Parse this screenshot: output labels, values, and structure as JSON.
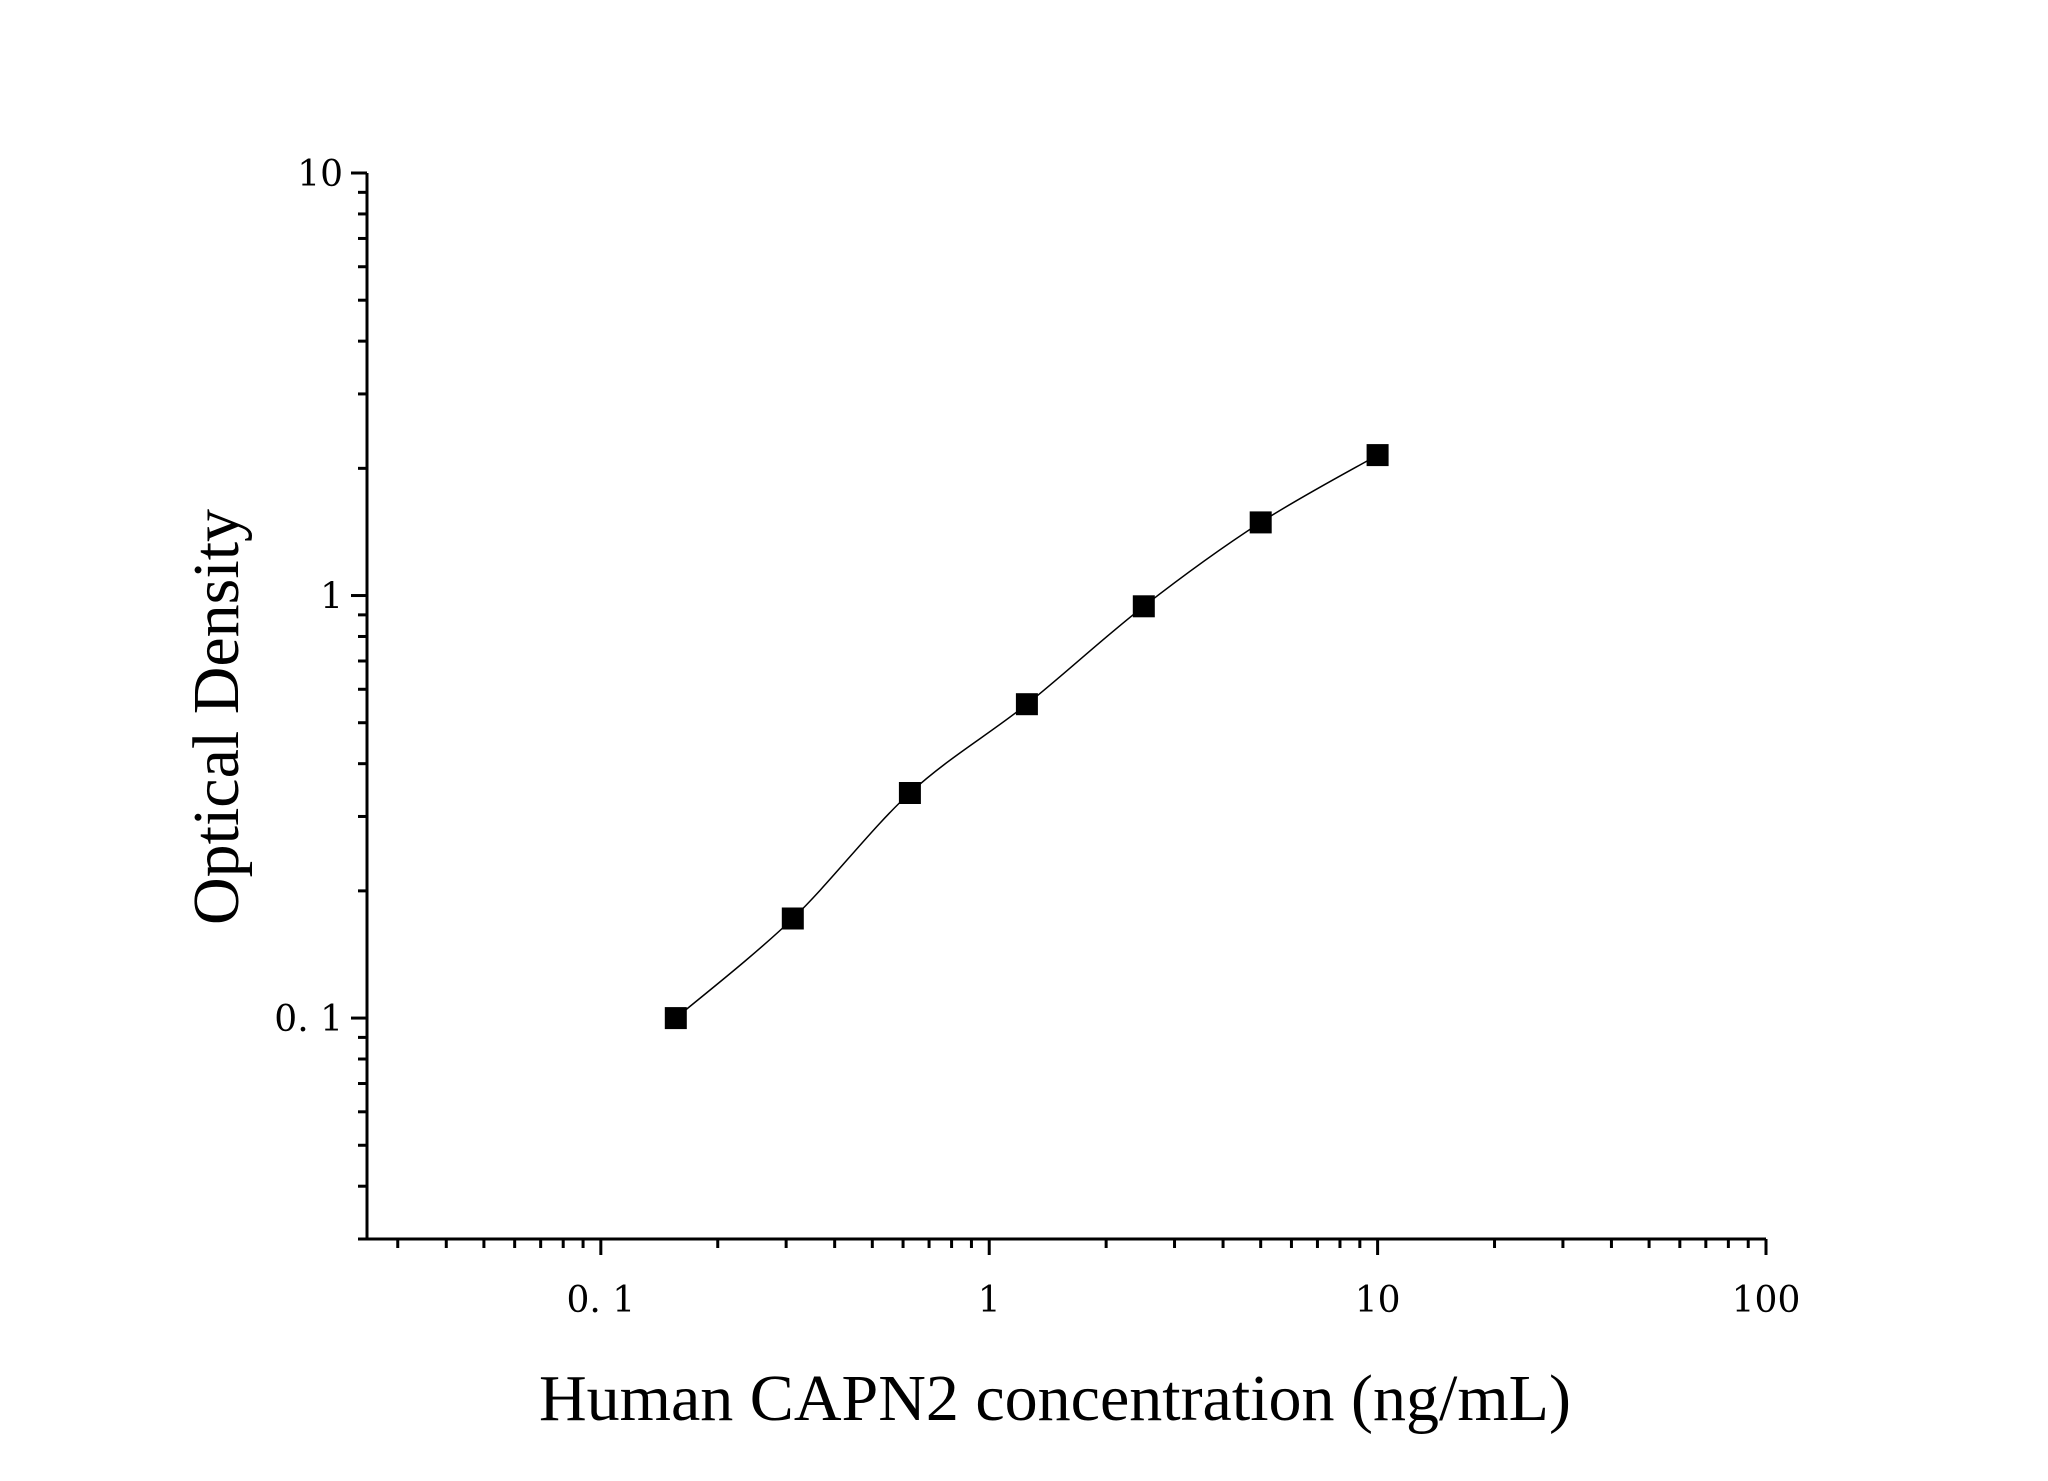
{
  "chart_data": {
    "type": "scatter",
    "x_scale": "log",
    "y_scale": "log",
    "xlabel": "Human CAPN2 concentration (ng/mL)",
    "ylabel": "Optical Density",
    "xlim": [
      0.025,
      100
    ],
    "ylim": [
      0.03,
      10
    ],
    "x_ticks": [
      {
        "value": 0.1,
        "label": "0. 1"
      },
      {
        "value": 1,
        "label": "1"
      },
      {
        "value": 10,
        "label": "10"
      },
      {
        "value": 100,
        "label": "100"
      }
    ],
    "y_ticks": [
      {
        "value": 0.1,
        "label": "0. 1"
      },
      {
        "value": 1,
        "label": "1"
      },
      {
        "value": 10,
        "label": "10"
      }
    ],
    "grid": false,
    "legend": "none",
    "series": [
      {
        "marker": "square",
        "color": "#000000",
        "x": [
          0.156,
          0.312,
          0.625,
          1.25,
          2.5,
          5,
          10
        ],
        "y": [
          0.1,
          0.172,
          0.341,
          0.553,
          0.943,
          1.49,
          2.15
        ]
      }
    ]
  }
}
